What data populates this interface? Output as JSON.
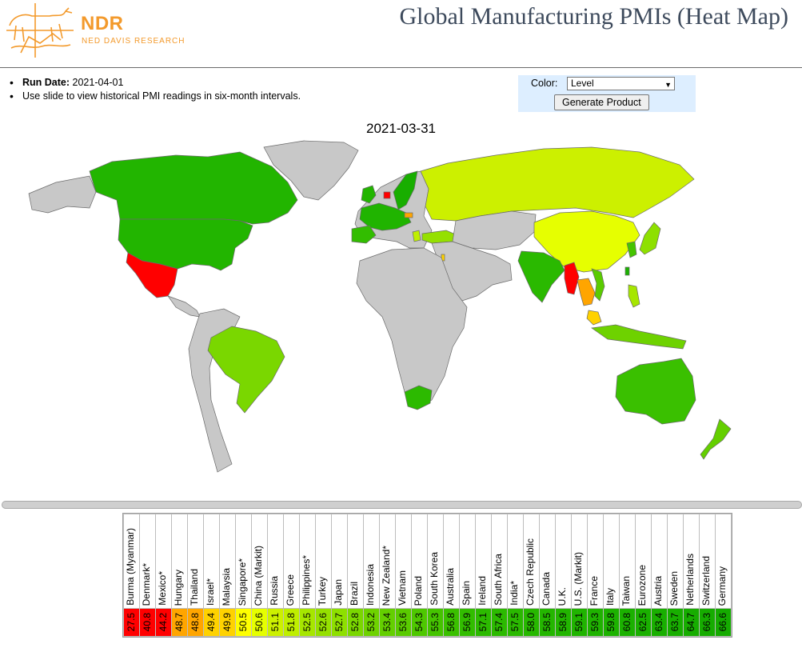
{
  "brand": {
    "name": "NDR",
    "subtitle": "NED DAVIS RESEARCH"
  },
  "page_title": "Global Manufacturing PMIs (Heat Map)",
  "info": {
    "run_date_label": "Run Date:",
    "run_date_value": "2021-04-01",
    "note": "Use slide to view historical PMI readings in six-month intervals."
  },
  "controls": {
    "color_label": "Color:",
    "color_value": "Level",
    "generate_label": "Generate Product"
  },
  "map": {
    "date": "2021-03-31"
  },
  "colors": {
    "land_default": "#c8c8c8",
    "ocean": "#ffffff",
    "border": "#6a6a6a"
  },
  "legend": [
    {
      "name": "Burma (Myanmar)",
      "value": "27.5",
      "color": "#ff0000"
    },
    {
      "name": "Denmark*",
      "value": "40.8",
      "color": "#ff0000"
    },
    {
      "name": "Mexico*",
      "value": "44.2",
      "color": "#ff0000"
    },
    {
      "name": "Hungary",
      "value": "48.7",
      "color": "#ffa500"
    },
    {
      "name": "Thailand",
      "value": "48.8",
      "color": "#ffa500"
    },
    {
      "name": "Israel*",
      "value": "49.4",
      "color": "#ffd200"
    },
    {
      "name": "Malaysia",
      "value": "49.9",
      "color": "#ffd200"
    },
    {
      "name": "Singapore*",
      "value": "50.5",
      "color": "#ffff00"
    },
    {
      "name": "China (Markit)",
      "value": "50.6",
      "color": "#e6ff00"
    },
    {
      "name": "Russia",
      "value": "51.1",
      "color": "#ccf000"
    },
    {
      "name": "Greece",
      "value": "51.8",
      "color": "#bfef00"
    },
    {
      "name": "Philippines*",
      "value": "52.5",
      "color": "#a6e600"
    },
    {
      "name": "Turkey",
      "value": "52.6",
      "color": "#95e000"
    },
    {
      "name": "Japan",
      "value": "52.7",
      "color": "#8ee000"
    },
    {
      "name": "Brazil",
      "value": "52.8",
      "color": "#7ad700"
    },
    {
      "name": "Indonesia",
      "value": "53.2",
      "color": "#6ed200"
    },
    {
      "name": "New Zealand*",
      "value": "53.4",
      "color": "#64cf00"
    },
    {
      "name": "Vietnam",
      "value": "53.6",
      "color": "#5acb00"
    },
    {
      "name": "Poland",
      "value": "54.3",
      "color": "#4ec800"
    },
    {
      "name": "South Korea",
      "value": "55.3",
      "color": "#45c400"
    },
    {
      "name": "Australia",
      "value": "56.8",
      "color": "#3ac000"
    },
    {
      "name": "Spain",
      "value": "56.9",
      "color": "#32bd00"
    },
    {
      "name": "Ireland",
      "value": "57.1",
      "color": "#2cba00"
    },
    {
      "name": "South Africa",
      "value": "57.4",
      "color": "#2cba00"
    },
    {
      "name": "India*",
      "value": "57.5",
      "color": "#2ab900"
    },
    {
      "name": "Czech Republic",
      "value": "58.0",
      "color": "#27b800"
    },
    {
      "name": "Canada",
      "value": "58.5",
      "color": "#24b600"
    },
    {
      "name": "U.K.",
      "value": "58.9",
      "color": "#22b500"
    },
    {
      "name": "U.S. (Markit)",
      "value": "59.1",
      "color": "#20b400"
    },
    {
      "name": "France",
      "value": "59.3",
      "color": "#1fb300"
    },
    {
      "name": "Italy",
      "value": "59.8",
      "color": "#1db200"
    },
    {
      "name": "Taiwan",
      "value": "60.8",
      "color": "#1bb100"
    },
    {
      "name": "Eurozone",
      "value": "62.5",
      "color": "#1ab000"
    },
    {
      "name": "Austria",
      "value": "63.4",
      "color": "#19af00"
    },
    {
      "name": "Sweden",
      "value": "63.7",
      "color": "#18ae00"
    },
    {
      "name": "Netherlands",
      "value": "64.7",
      "color": "#17ad00"
    },
    {
      "name": "Switzerland",
      "value": "66.3",
      "color": "#16ac00"
    },
    {
      "name": "Germany",
      "value": "66.6",
      "color": "#15ab00"
    }
  ]
}
